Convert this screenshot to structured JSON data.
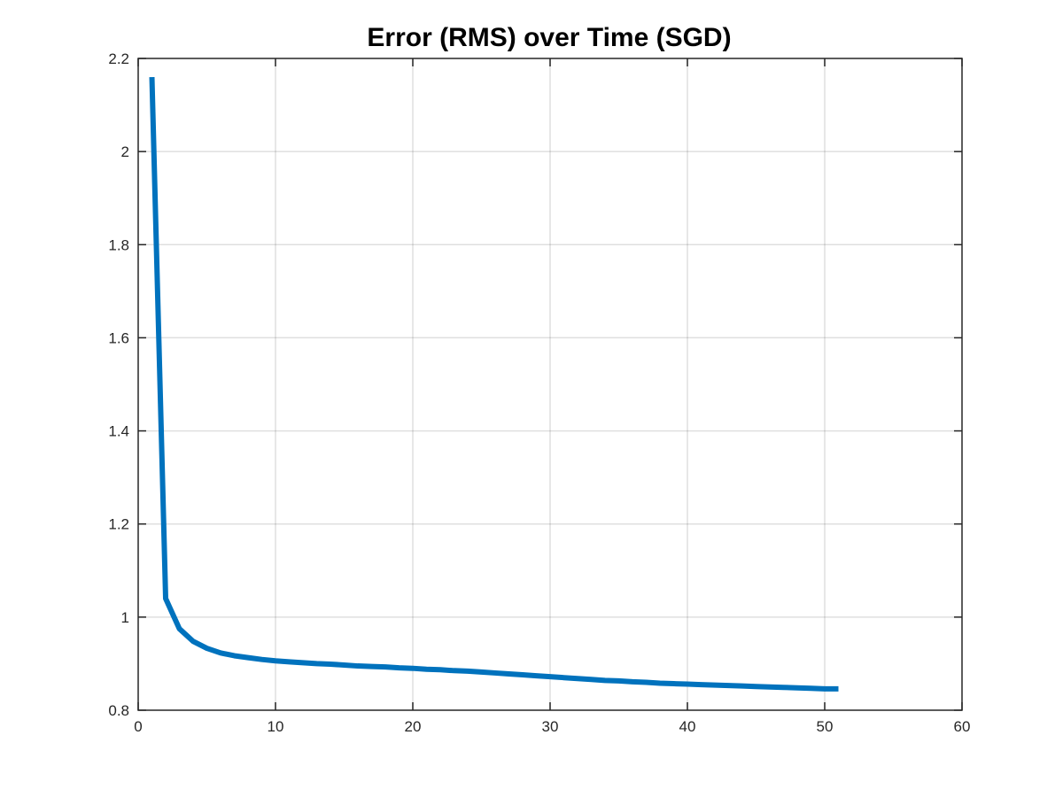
{
  "chart_data": {
    "type": "line",
    "title": "Error (RMS) over Time (SGD)",
    "xlabel": "",
    "ylabel": "",
    "xlim": [
      0,
      60
    ],
    "ylim": [
      0.8,
      2.2
    ],
    "xticks": [
      0,
      10,
      20,
      30,
      40,
      50,
      60
    ],
    "yticks": [
      0.8,
      1,
      1.2,
      1.4,
      1.6,
      1.8,
      2,
      2.2
    ],
    "xtick_labels": [
      "0",
      "10",
      "20",
      "30",
      "40",
      "50",
      "60"
    ],
    "ytick_labels": [
      "0.8",
      "1",
      "1.2",
      "1.4",
      "1.6",
      "1.8",
      "2",
      "2.2"
    ],
    "grid": true,
    "series": [
      {
        "color": "#0072BD",
        "x": [
          1,
          2,
          3,
          4,
          5,
          6,
          7,
          8,
          9,
          10,
          11,
          12,
          13,
          14,
          15,
          16,
          17,
          18,
          19,
          20,
          21,
          22,
          23,
          24,
          25,
          26,
          27,
          28,
          29,
          30,
          31,
          32,
          33,
          34,
          35,
          36,
          37,
          38,
          39,
          40,
          41,
          42,
          43,
          44,
          45,
          46,
          47,
          48,
          49,
          50,
          51
        ],
        "y": [
          2.16,
          1.04,
          0.975,
          0.948,
          0.933,
          0.923,
          0.917,
          0.913,
          0.909,
          0.906,
          0.904,
          0.902,
          0.9,
          0.899,
          0.897,
          0.895,
          0.894,
          0.893,
          0.891,
          0.89,
          0.888,
          0.887,
          0.885,
          0.884,
          0.882,
          0.88,
          0.878,
          0.876,
          0.874,
          0.872,
          0.87,
          0.868,
          0.866,
          0.864,
          0.863,
          0.861,
          0.86,
          0.858,
          0.857,
          0.856,
          0.855,
          0.854,
          0.853,
          0.852,
          0.851,
          0.85,
          0.849,
          0.848,
          0.847,
          0.846,
          0.846
        ]
      }
    ]
  }
}
